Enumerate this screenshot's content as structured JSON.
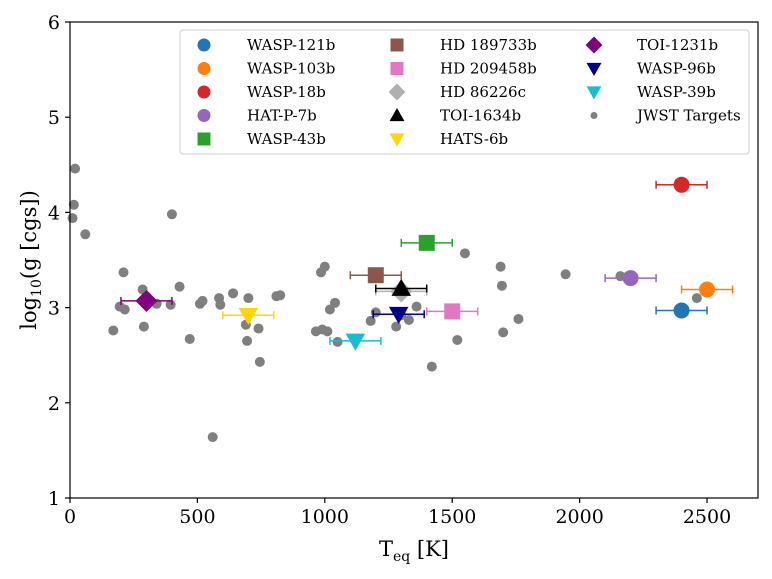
{
  "chart_data": {
    "type": "scatter",
    "xlabel_main": "T",
    "xlabel_sub": "eq",
    "xlabel_unit": " [K]",
    "ylabel_pre": "log",
    "ylabel_sub": "10",
    "ylabel_post": "(g [cgs])",
    "xlim": [
      0,
      2700
    ],
    "ylim": [
      1,
      6
    ],
    "xticks": [
      0,
      500,
      1000,
      1500,
      2000,
      2500
    ],
    "yticks": [
      1,
      2,
      3,
      4,
      5,
      6
    ],
    "grid": false,
    "legend_position": "top-right",
    "jwst_targets": {
      "name": "JWST Targets",
      "color": "#7f7f7f",
      "points": [
        [
          20,
          4.46
        ],
        [
          15,
          4.08
        ],
        [
          10,
          3.94
        ],
        [
          60,
          3.77
        ],
        [
          210,
          3.37
        ],
        [
          170,
          2.76
        ],
        [
          195,
          3.01
        ],
        [
          215,
          2.98
        ],
        [
          285,
          3.19
        ],
        [
          290,
          2.8
        ],
        [
          340,
          3.04
        ],
        [
          400,
          3.98
        ],
        [
          395,
          3.03
        ],
        [
          430,
          3.22
        ],
        [
          470,
          2.67
        ],
        [
          520,
          3.07
        ],
        [
          510,
          3.04
        ],
        [
          560,
          1.64
        ],
        [
          585,
          3.1
        ],
        [
          590,
          3.03
        ],
        [
          640,
          3.15
        ],
        [
          690,
          2.82
        ],
        [
          695,
          2.65
        ],
        [
          700,
          3.1
        ],
        [
          740,
          2.78
        ],
        [
          745,
          2.43
        ],
        [
          810,
          3.12
        ],
        [
          825,
          3.13
        ],
        [
          965,
          2.75
        ],
        [
          985,
          3.37
        ],
        [
          990,
          2.77
        ],
        [
          1000,
          3.43
        ],
        [
          1010,
          2.75
        ],
        [
          1020,
          2.98
        ],
        [
          1040,
          3.05
        ],
        [
          1050,
          2.64
        ],
        [
          1180,
          2.86
        ],
        [
          1200,
          2.95
        ],
        [
          1280,
          2.8
        ],
        [
          1300,
          2.92
        ],
        [
          1330,
          2.87
        ],
        [
          1360,
          3.01
        ],
        [
          1420,
          2.38
        ],
        [
          1520,
          2.66
        ],
        [
          1550,
          3.57
        ],
        [
          1690,
          3.43
        ],
        [
          1695,
          3.23
        ],
        [
          1700,
          2.74
        ],
        [
          1760,
          2.88
        ],
        [
          1945,
          3.35
        ],
        [
          2160,
          3.33
        ],
        [
          2460,
          3.1
        ]
      ]
    },
    "series": [
      {
        "name": "WASP-121b",
        "marker": "circle",
        "color": "#1f77b4",
        "x": 2400,
        "y": 2.97,
        "xerr": 100
      },
      {
        "name": "WASP-103b",
        "marker": "circle",
        "color": "#ff7f0e",
        "x": 2500,
        "y": 3.19,
        "xerr": 100
      },
      {
        "name": "WASP-18b",
        "marker": "circle",
        "color": "#d62728",
        "x": 2400,
        "y": 4.29,
        "xerr": 100
      },
      {
        "name": "HAT-P-7b",
        "marker": "circle",
        "color": "#9467bd",
        "x": 2200,
        "y": 3.31,
        "xerr": 100
      },
      {
        "name": "WASP-43b",
        "marker": "square",
        "color": "#2ca02c",
        "x": 1400,
        "y": 3.68,
        "xerr": 100
      },
      {
        "name": "HD 189733b",
        "marker": "square",
        "color": "#8c564b",
        "x": 1200,
        "y": 3.34,
        "xerr": 100
      },
      {
        "name": "HD 209458b",
        "marker": "square",
        "color": "#e377c2",
        "x": 1500,
        "y": 2.96,
        "xerr": 100
      },
      {
        "name": "HD 86226c",
        "marker": "diamond",
        "color": "#b0b0b0",
        "x": 1300,
        "y": 3.17,
        "xerr": 100
      },
      {
        "name": "TOI-1634b",
        "marker": "triangle-up",
        "color": "#000000",
        "x": 1300,
        "y": 3.2,
        "xerr": 100
      },
      {
        "name": "HATS-6b",
        "marker": "triangle-down",
        "color": "#ffd700",
        "x": 700,
        "y": 2.92,
        "xerr": 100
      },
      {
        "name": "TOI-1231b",
        "marker": "diamond",
        "color": "#800080",
        "x": 300,
        "y": 3.07,
        "xerr": 100
      },
      {
        "name": "WASP-96b",
        "marker": "triangle-down",
        "color": "#00008b",
        "x": 1290,
        "y": 2.93,
        "xerr": 100
      },
      {
        "name": "WASP-39b",
        "marker": "triangle-down",
        "color": "#17becf",
        "x": 1120,
        "y": 2.65,
        "xerr": 100
      }
    ],
    "legend_order": [
      [
        "WASP-121b",
        "WASP-103b",
        "WASP-18b",
        "HAT-P-7b",
        "WASP-43b"
      ],
      [
        "HD 189733b",
        "HD 209458b",
        "HD 86226c",
        "TOI-1634b",
        "HATS-6b"
      ],
      [
        "TOI-1231b",
        "WASP-96b",
        "WASP-39b",
        "JWST Targets"
      ]
    ]
  }
}
